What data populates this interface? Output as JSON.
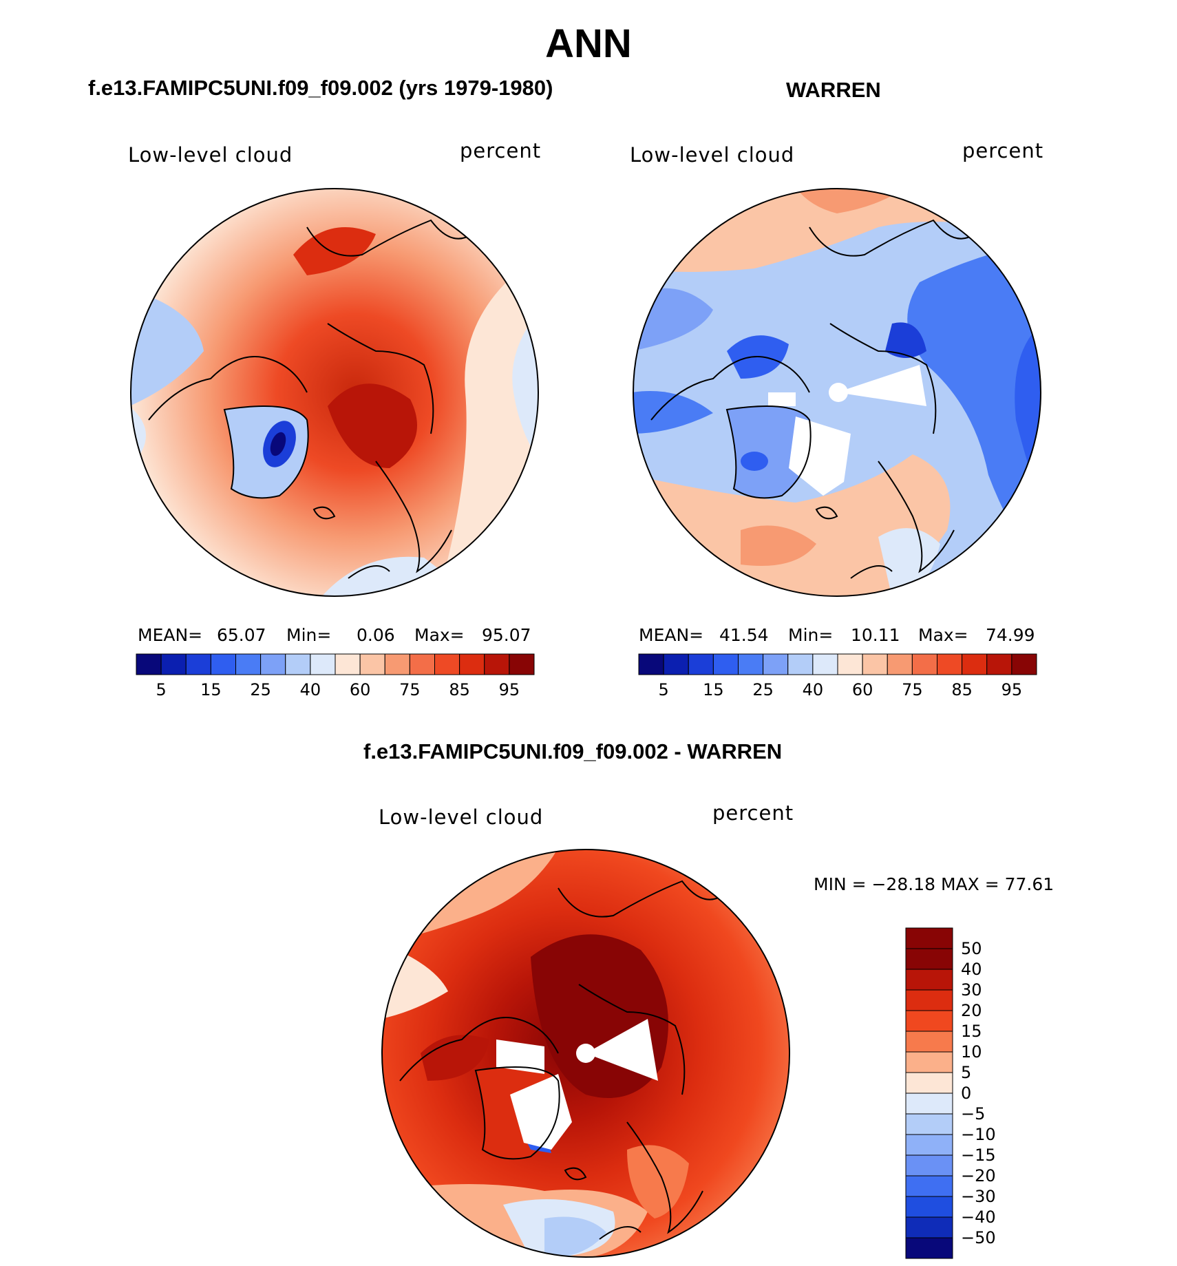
{
  "title": "ANN",
  "panels": [
    {
      "subtitle": "f.e13.FAMIPC5UNI.f09_f09.002 (yrs 1979-1980)",
      "variable": "Low-level cloud",
      "units": "percent",
      "stats": {
        "mean_label": "MEAN=",
        "mean": "65.07",
        "min_label": "Min=",
        "min": "0.06",
        "max_label": "Max=",
        "max": "95.07"
      },
      "colorbar": {
        "colors": [
          "#08087a",
          "#0b1fb0",
          "#1b3ed8",
          "#2f5ef0",
          "#4a7cf5",
          "#7da1f7",
          "#b3cdf8",
          "#dde9fa",
          "#fde6d6",
          "#fbc5a6",
          "#f79a72",
          "#f36e48",
          "#ee4a25",
          "#dc2d10",
          "#b81508",
          "#880505"
        ],
        "tick_labels": [
          "5",
          "15",
          "25",
          "40",
          "60",
          "75",
          "85",
          "95"
        ]
      }
    },
    {
      "subtitle": "WARREN",
      "variable": "Low-level cloud",
      "units": "percent",
      "stats": {
        "mean_label": "MEAN=",
        "mean": "41.54",
        "min_label": "Min=",
        "min": "10.11",
        "max_label": "Max=",
        "max": "74.99"
      },
      "colorbar": {
        "colors": [
          "#08087a",
          "#0b1fb0",
          "#1b3ed8",
          "#2f5ef0",
          "#4a7cf5",
          "#7da1f7",
          "#b3cdf8",
          "#dde9fa",
          "#fde6d6",
          "#fbc5a6",
          "#f79a72",
          "#f36e48",
          "#ee4a25",
          "#dc2d10",
          "#b81508",
          "#880505"
        ],
        "tick_labels": [
          "5",
          "15",
          "25",
          "40",
          "60",
          "75",
          "85",
          "95"
        ]
      }
    },
    {
      "subtitle": "f.e13.FAMIPC5UNI.f09_f09.002 - WARREN",
      "variable": "Low-level cloud",
      "units": "percent",
      "minmax": "MIN = −28.18 MAX =   77.61",
      "colorbar": {
        "colors": [
          "#880505",
          "#b81508",
          "#dc2d10",
          "#f0481f",
          "#f77a4c",
          "#fbb08a",
          "#fde6d6",
          "#dde9fa",
          "#b3cdf8",
          "#8fb1f8",
          "#6a91f5",
          "#3f6ff2",
          "#1f4ee0",
          "#0f2cb8",
          "#08087a"
        ],
        "tick_labels": [
          "50",
          "40",
          "30",
          "20",
          "15",
          "10",
          "5",
          "0",
          "−5",
          "−10",
          "−15",
          "−20",
          "−30",
          "−40",
          "−50"
        ]
      }
    }
  ]
}
